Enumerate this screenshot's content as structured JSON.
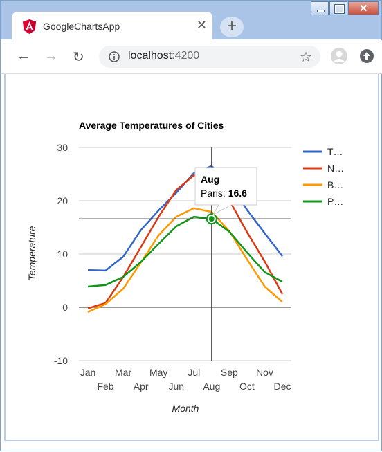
{
  "browser": {
    "tab_title": "GoogleChartsApp",
    "url_host": "localhost",
    "url_port": ":4200"
  },
  "chart_data": {
    "type": "line",
    "title": "Average Temperatures of Cities",
    "xlabel": "Month",
    "ylabel": "Temperature",
    "categories": [
      "Jan",
      "Feb",
      "Mar",
      "Apr",
      "May",
      "Jun",
      "Jul",
      "Aug",
      "Sep",
      "Oct",
      "Nov",
      "Dec"
    ],
    "ylim": [
      -10,
      30
    ],
    "yticks": [
      -10,
      0,
      10,
      20,
      30
    ],
    "legend_position": "right",
    "series": [
      {
        "name": "T…",
        "color": "#3366cc",
        "values": [
          7.0,
          6.9,
          9.5,
          14.5,
          18.2,
          21.5,
          25.2,
          26.5,
          23.3,
          18.3,
          13.9,
          9.6
        ]
      },
      {
        "name": "N…",
        "color": "#dc3912",
        "values": [
          -0.2,
          0.8,
          5.7,
          11.3,
          17.0,
          22.0,
          24.8,
          24.1,
          20.1,
          14.1,
          8.6,
          2.5
        ]
      },
      {
        "name": "B…",
        "color": "#ff9900",
        "values": [
          -0.9,
          0.6,
          3.5,
          8.4,
          13.5,
          17.0,
          18.6,
          17.9,
          14.3,
          9.0,
          3.9,
          1.0
        ]
      },
      {
        "name": "P…",
        "color": "#109618",
        "values": [
          3.9,
          4.2,
          5.7,
          8.5,
          11.9,
          15.2,
          17.0,
          16.6,
          14.2,
          10.3,
          6.6,
          4.8
        ]
      }
    ],
    "tooltip": {
      "category": "Aug",
      "series": "Paris",
      "label": "Paris: ",
      "value": "16.6"
    }
  }
}
